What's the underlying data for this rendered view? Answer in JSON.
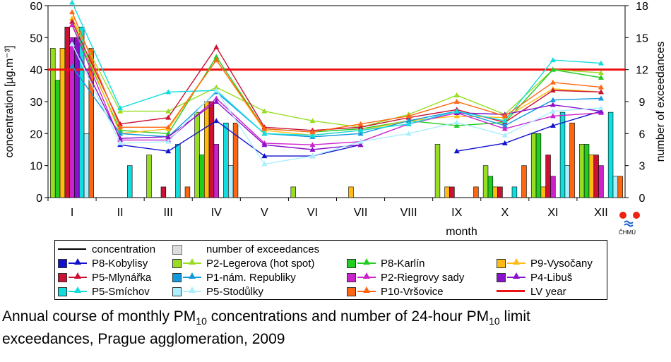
{
  "chart_data": {
    "type": "bar",
    "categories": [
      "I",
      "II",
      "III",
      "IV",
      "V",
      "VI",
      "VII",
      "VIII",
      "IX",
      "X",
      "XI",
      "XII"
    ],
    "xlabel": "month",
    "ylabel": "concentration [µg.m⁻³]",
    "y2label": "number of exceedances",
    "ylim": [
      0,
      60
    ],
    "y2lim": [
      0,
      18
    ],
    "yticks": [
      "0",
      "10",
      "20",
      "30",
      "40",
      "50",
      "60"
    ],
    "y2ticks": [
      "0",
      "3",
      "6",
      "9",
      "12",
      "15",
      "18"
    ],
    "limit_value": 40,
    "limit_label": "LV year",
    "limit_color": "#ee1111",
    "legend_header": {
      "line": "concentration",
      "bar": "number of exceedances"
    },
    "series": [
      {
        "name": "P8-Kobylisy",
        "color": "#1111cc",
        "exceed": [
          null,
          null,
          null,
          null,
          null,
          null,
          null,
          null,
          null,
          null,
          null,
          null
        ],
        "conc": [
          null,
          16.5,
          14.5,
          24,
          13,
          13,
          16.5,
          null,
          14.5,
          17,
          22.5,
          27
        ]
      },
      {
        "name": "P2-Legerova (hot spot)",
        "color": "#99dd22",
        "exceed": [
          14,
          0,
          4,
          8,
          0,
          1,
          0,
          0,
          5,
          3,
          6,
          5
        ],
        "conc": [
          null,
          27,
          27,
          34.5,
          27,
          24,
          22,
          26,
          32,
          26,
          40,
          39
        ]
      },
      {
        "name": "P8-Karlín",
        "color": "#22cc22",
        "exceed": [
          11,
          0,
          0,
          4,
          0,
          0,
          0,
          0,
          0,
          2,
          6,
          5
        ],
        "conc": [
          null,
          21,
          20,
          44,
          21.5,
          20.5,
          21.5,
          24,
          22.5,
          23.5,
          40,
          37.5
        ]
      },
      {
        "name": "P9-Vysočany",
        "color": "#ffbb11",
        "exceed": [
          14,
          0,
          0,
          9,
          0,
          0,
          1,
          0,
          1,
          1,
          1,
          4
        ],
        "conc": [
          null,
          20,
          21.5,
          43,
          21,
          19.5,
          21,
          24,
          25.5,
          25,
          34,
          33
        ]
      },
      {
        "name": "P5-Mlynářka",
        "color": "#cc1133",
        "exceed": [
          16,
          0,
          1,
          9,
          0,
          0,
          0,
          0,
          1,
          1,
          4,
          4
        ],
        "conc": [
          null,
          23,
          25,
          47,
          22,
          21,
          22,
          25,
          27.5,
          23.5,
          33.5,
          33
        ]
      },
      {
        "name": "P1-nám. Republiky",
        "color": "#1199dd",
        "exceed": [
          null,
          null,
          null,
          null,
          null,
          null,
          null,
          null,
          null,
          null,
          null,
          null
        ],
        "conc": [
          null,
          20,
          19,
          33,
          20,
          19,
          20,
          24,
          27,
          22.5,
          30.5,
          31
        ]
      },
      {
        "name": "P2-Riegrovy sady",
        "color": "#cc22cc",
        "exceed": [
          15,
          0,
          0,
          5,
          0,
          0,
          0,
          0,
          0,
          0,
          2,
          3
        ],
        "conc": [
          null,
          18,
          18,
          31,
          17,
          16.5,
          17.5,
          23,
          26.5,
          21.5,
          25.5,
          26.5
        ]
      },
      {
        "name": "P4-Libuš",
        "color": "#8811cc",
        "exceed": [
          15,
          0,
          0,
          0,
          0,
          0,
          0,
          0,
          0,
          0,
          0,
          0
        ],
        "conc": [
          null,
          18.5,
          19,
          30,
          16.5,
          15,
          16.5,
          null,
          26.5,
          26,
          29,
          27
        ]
      },
      {
        "name": "P5-Smíchov",
        "color": "#11dddd",
        "exceed": [
          16,
          3,
          5,
          7,
          0,
          0,
          0,
          0,
          0,
          1,
          8,
          8
        ],
        "conc": [
          null,
          28,
          33,
          33.5,
          20,
          19.5,
          21,
          23,
          27,
          24,
          43,
          42
        ]
      },
      {
        "name": "P5-Stodůlky",
        "color": "#aaeeff",
        "exceed": [
          6,
          0,
          0,
          3,
          0,
          0,
          0,
          0,
          0,
          0,
          3,
          2
        ],
        "conc": [
          null,
          17,
          17.5,
          33.5,
          10.5,
          13,
          17.5,
          20,
          23.5,
          19.5,
          27,
          28
        ]
      },
      {
        "name": "P10-Vršovice",
        "color": "#ff6611",
        "exceed": [
          14,
          0,
          1,
          7,
          0,
          0,
          0,
          0,
          1,
          3,
          7,
          2
        ],
        "conc": [
          null,
          22,
          22,
          43,
          21.5,
          20.5,
          23,
          25.5,
          30,
          25.5,
          36,
          34.5
        ]
      }
    ],
    "line_first_points": {
      "P8-Kobylisy": null,
      "P2-Legerova (hot spot)": 56,
      "P8-Karlín": 54,
      "P9-Vysočany": 56,
      "P5-Mlynářka": 55,
      "P1-nám. Republiky": 41,
      "P2-Riegrovy sady": 54,
      "P4-Libuš": 49,
      "P5-Smíchov": 61,
      "P5-Stodůlky": 48,
      "P10-Vršovice": 58
    }
  },
  "caption": {
    "part1": "Annual course of monthly PM",
    "sub1": "10",
    "part2": " concentrations and number of 24-hour PM",
    "sub2": "10",
    "part3": " limit",
    "line2": "exceedances, Prague agglomeration, 2009"
  },
  "logo_text": "ČHMÚ"
}
